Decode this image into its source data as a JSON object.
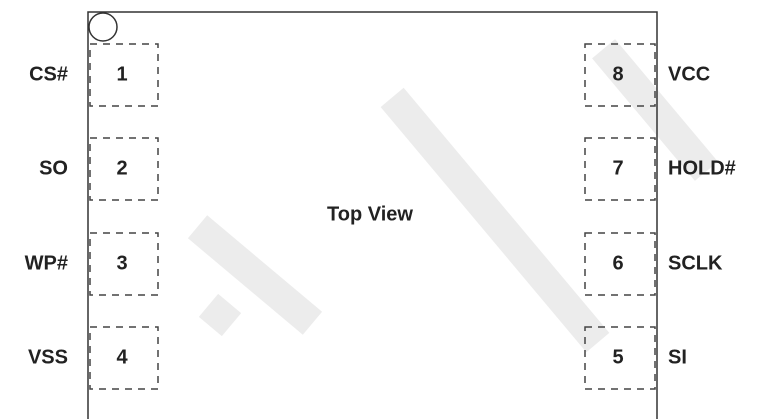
{
  "label": "Top View",
  "left_pins": [
    {
      "number": "1",
      "name": "CS#"
    },
    {
      "number": "2",
      "name": "SO"
    },
    {
      "number": "3",
      "name": "WP#"
    },
    {
      "number": "4",
      "name": "VSS"
    }
  ],
  "right_pins": [
    {
      "number": "8",
      "name": "VCC"
    },
    {
      "number": "7",
      "name": "HOLD#"
    },
    {
      "number": "6",
      "name": "SCLK"
    },
    {
      "number": "5",
      "name": "SI"
    }
  ]
}
